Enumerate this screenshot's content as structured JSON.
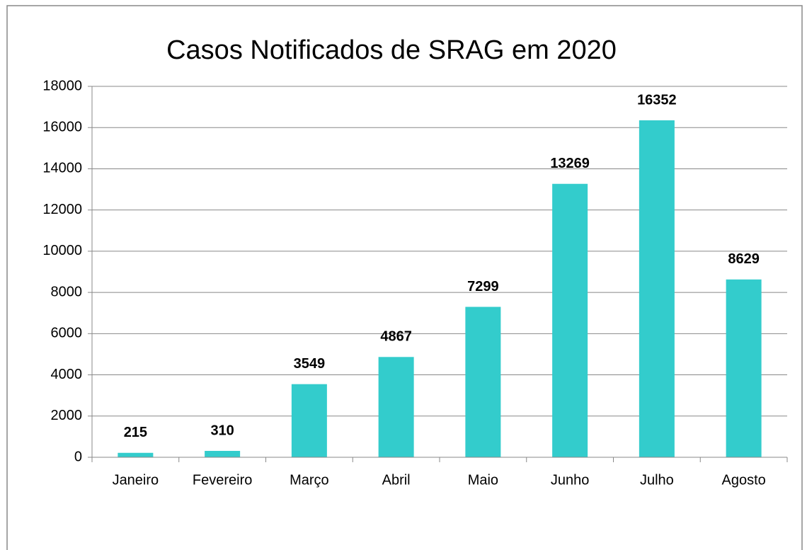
{
  "chart_data": {
    "type": "bar",
    "title": "Casos Notificados de SRAG em 2020",
    "categories": [
      "Janeiro",
      "Fevereiro",
      "Março",
      "Abril",
      "Maio",
      "Junho",
      "Julho",
      "Agosto"
    ],
    "values": [
      215,
      310,
      3549,
      4867,
      7299,
      13269,
      16352,
      8629
    ],
    "color": "#33cccc",
    "ylim": [
      0,
      18000
    ],
    "yticks": [
      0,
      2000,
      4000,
      6000,
      8000,
      10000,
      12000,
      14000,
      16000,
      18000
    ],
    "grid": true
  }
}
